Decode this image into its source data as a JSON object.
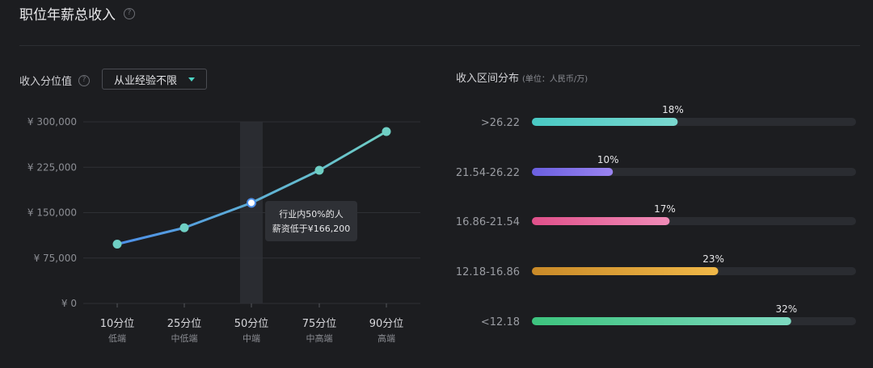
{
  "header": {
    "title": "职位年薪总收入",
    "help_icon": "help-icon"
  },
  "left_panel": {
    "label": "收入分位值",
    "help_icon": "help-icon",
    "filter": {
      "selected": "从业经验不限",
      "caret_icon": "caret-down-icon"
    }
  },
  "right_panel": {
    "title": "收入区间分布",
    "unit": "(单位：人民币/万)"
  },
  "tooltip": {
    "line1": "行业内50%的人",
    "line2": "薪资低于¥166,200"
  },
  "colors": {
    "background": "#1c1d20",
    "line_start": "#4d8fe8",
    "line_end": "#6fcfc4",
    "point": "#6fcfc4",
    "grid": "#2e3035"
  },
  "chart_data": [
    {
      "type": "line",
      "x_categories": [
        "10分位",
        "25分位",
        "50分位",
        "75分位",
        "90分位"
      ],
      "x_sublabels": [
        "低端",
        "中低端",
        "中端",
        "中高端",
        "高端"
      ],
      "values": [
        98000,
        125000,
        166200,
        220000,
        284000
      ],
      "yticks": [
        0,
        75000,
        150000,
        225000,
        300000
      ],
      "ytick_labels": [
        "¥ 0",
        "¥ 75,000",
        "¥ 150,000",
        "¥ 225,000",
        "¥ 300,000"
      ],
      "ylim": [
        0,
        300000
      ],
      "highlight_index": 2,
      "grid": true
    },
    {
      "type": "bar",
      "orientation": "horizontal",
      "categories": [
        ">26.22",
        "21.54-26.22",
        "16.86-21.54",
        "12.18-16.86",
        "<12.18"
      ],
      "values": [
        18,
        10,
        17,
        23,
        32
      ],
      "value_labels": [
        "18%",
        "10%",
        "17%",
        "23%",
        "32%"
      ],
      "xlim": [
        0,
        40
      ],
      "bar_colors": [
        [
          "#49c9c4",
          "#7ad8cf"
        ],
        [
          "#6a5fe0",
          "#9a84f0"
        ],
        [
          "#e0508a",
          "#f08cb8"
        ],
        [
          "#c98a28",
          "#f0b848"
        ],
        [
          "#3dc47e",
          "#7dd9c0"
        ]
      ],
      "track_color": "#2a2c31"
    }
  ]
}
